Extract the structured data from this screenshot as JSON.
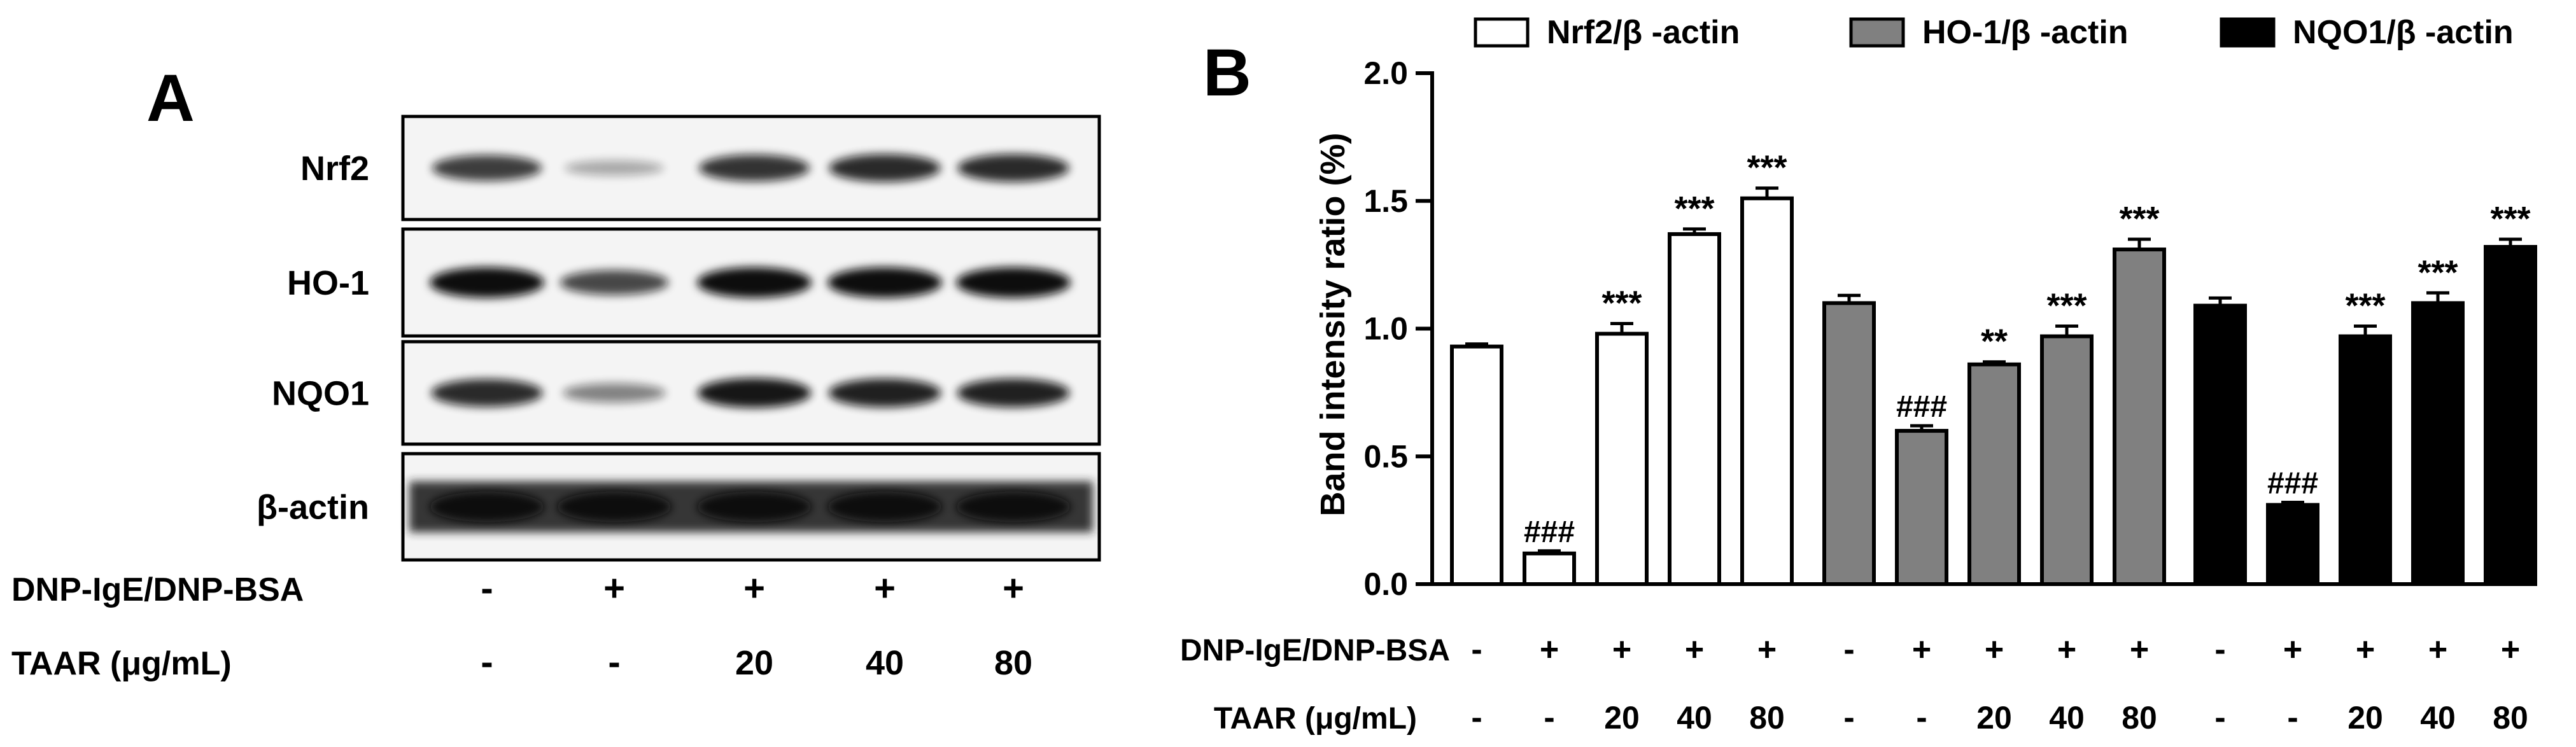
{
  "panel_a": {
    "label": "A",
    "blots": [
      {
        "name": "Nrf2",
        "intensities": [
          0.75,
          0.2,
          0.8,
          0.85,
          0.85
        ]
      },
      {
        "name": "HO-1",
        "intensities": [
          1.0,
          0.7,
          1.0,
          1.0,
          1.0
        ]
      },
      {
        "name": "NQO1",
        "intensities": [
          0.85,
          0.4,
          0.95,
          0.9,
          0.9
        ]
      },
      {
        "name": "β-actin",
        "intensities": [
          1.0,
          1.0,
          1.0,
          1.0,
          1.0
        ]
      }
    ],
    "treatment_rows": [
      {
        "label": "DNP-IgE/DNP-BSA",
        "values": [
          "-",
          "+",
          "+",
          "+",
          "+"
        ]
      },
      {
        "label": "TAAR (μg/mL)",
        "values": [
          "-",
          "-",
          "20",
          "40",
          "80"
        ]
      }
    ]
  },
  "panel_b": {
    "label": "B"
  },
  "chart_data": {
    "type": "bar",
    "ylabel": "Band intensity ratio (%)",
    "ylim": [
      0,
      2.0
    ],
    "yticks": [
      "0.0",
      "0.5",
      "1.0",
      "1.5",
      "2.0"
    ],
    "legend_position": "top",
    "series": [
      {
        "name": "Nrf2/β -actin",
        "fill": "#ffffff",
        "values": [
          0.93,
          0.12,
          0.98,
          1.37,
          1.51
        ],
        "errors": [
          0.01,
          0.01,
          0.04,
          0.02,
          0.04
        ],
        "annotations": [
          "",
          "###",
          "***",
          "***",
          "***"
        ]
      },
      {
        "name": "HO-1/β -actin",
        "fill": "#808080",
        "values": [
          1.1,
          0.6,
          0.86,
          0.97,
          1.31
        ],
        "errors": [
          0.03,
          0.02,
          0.01,
          0.04,
          0.04
        ],
        "annotations": [
          "",
          "###",
          "**",
          "***",
          "***"
        ]
      },
      {
        "name": "NQO1/β -actin",
        "fill": "#000000",
        "values": [
          1.09,
          0.31,
          0.97,
          1.1,
          1.32
        ],
        "errors": [
          0.03,
          0.01,
          0.04,
          0.04,
          0.03
        ],
        "annotations": [
          "",
          "###",
          "***",
          "***",
          "***"
        ]
      }
    ],
    "treatment_rows": [
      {
        "label": "DNP-IgE/DNP-BSA",
        "values": [
          "-",
          "+",
          "+",
          "+",
          "+"
        ]
      },
      {
        "label": "TAAR (μg/mL)",
        "values": [
          "-",
          "-",
          "20",
          "40",
          "80"
        ]
      }
    ]
  }
}
